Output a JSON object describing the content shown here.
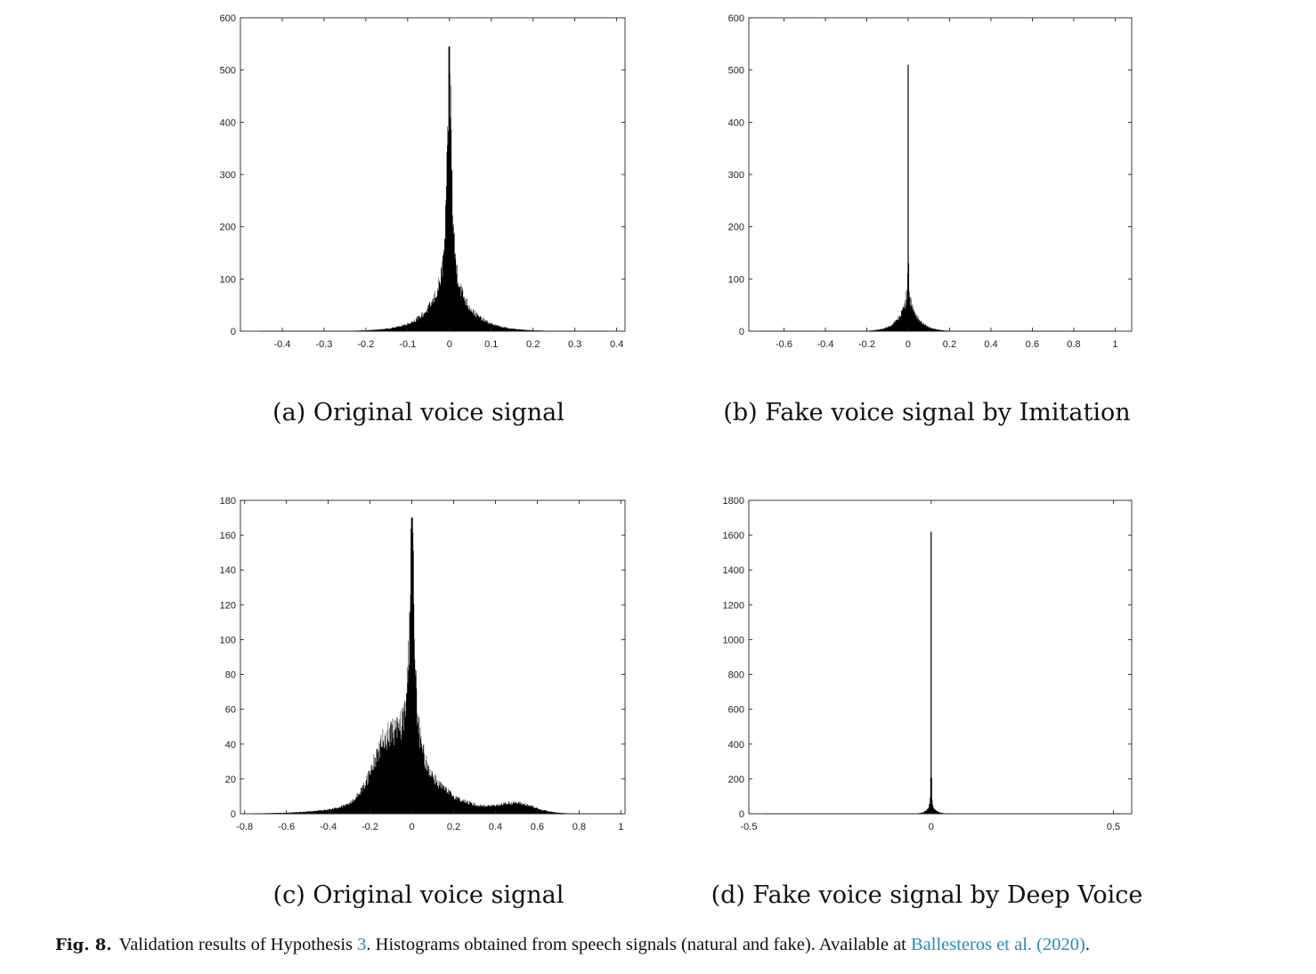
{
  "chart_data": [
    {
      "type": "bar",
      "panel": "a",
      "title": "",
      "xlabel": "",
      "ylabel": "",
      "xlim": [
        -0.5,
        0.42
      ],
      "ylim": [
        0,
        600
      ],
      "x_ticks": [
        -0.4,
        -0.3,
        -0.2,
        -0.1,
        0,
        0.1,
        0.2,
        0.3,
        0.4
      ],
      "x_tick_labels": [
        "-0.4",
        "-0.3",
        "-0.2",
        "-0.1",
        "0",
        "0.1",
        "0.2",
        "0.3",
        "0.4"
      ],
      "y_ticks": [
        0,
        100,
        200,
        300,
        400,
        500,
        600
      ],
      "y_tick_labels": [
        "0",
        "100",
        "200",
        "300",
        "400",
        "500",
        "600"
      ],
      "grid": false,
      "distribution": {
        "center": 0,
        "peak": 545,
        "narrow_width": 0.0055,
        "narrow_weight": 0.78,
        "broad_width": 0.045,
        "broad_weight": 0.22,
        "noise": 0.3,
        "support": [
          -0.45,
          0.38
        ]
      }
    },
    {
      "type": "bar",
      "panel": "b",
      "title": "",
      "xlabel": "",
      "ylabel": "",
      "xlim": [
        -0.77,
        1.08
      ],
      "ylim": [
        0,
        600
      ],
      "x_ticks": [
        -0.6,
        -0.4,
        -0.2,
        0,
        0.2,
        0.4,
        0.6,
        0.8,
        1
      ],
      "x_tick_labels": [
        "-0.6",
        "-0.4",
        "-0.2",
        "0",
        "0.2",
        "0.4",
        "0.6",
        "0.8",
        "1"
      ],
      "y_ticks": [
        0,
        100,
        200,
        300,
        400,
        500,
        600
      ],
      "y_tick_labels": [
        "0",
        "100",
        "200",
        "300",
        "400",
        "500",
        "600"
      ],
      "grid": false,
      "distribution": {
        "center": 0,
        "peak": 510,
        "narrow_width": 0.0012,
        "narrow_weight": 0.86,
        "broad_width": 0.045,
        "broad_weight": 0.14,
        "noise": 0.3,
        "support": [
          -0.72,
          1.0
        ]
      }
    },
    {
      "type": "bar",
      "panel": "c",
      "title": "",
      "xlabel": "",
      "ylabel": "",
      "xlim": [
        -0.82,
        1.02
      ],
      "ylim": [
        0,
        180
      ],
      "x_ticks": [
        -0.8,
        -0.6,
        -0.4,
        -0.2,
        0,
        0.2,
        0.4,
        0.6,
        0.8,
        1
      ],
      "x_tick_labels": [
        "-0.8",
        "-0.6",
        "-0.4",
        "-0.2",
        "0",
        "0.2",
        "0.4",
        "0.6",
        "0.8",
        "1"
      ],
      "y_ticks": [
        0,
        20,
        40,
        60,
        80,
        100,
        120,
        140,
        160,
        180
      ],
      "y_tick_labels": [
        "0",
        "20",
        "40",
        "60",
        "80",
        "100",
        "120",
        "140",
        "160",
        "180"
      ],
      "grid": false,
      "distribution": {
        "center": 0,
        "peak": 170,
        "narrow_width": 0.012,
        "narrow_weight": 0.76,
        "broad_width": 0.14,
        "broad_weight": 0.24,
        "shoulder_x": -0.12,
        "shoulder_height": 26,
        "shoulder_width": 0.1,
        "tail_x": 0.5,
        "tail_height": 5,
        "tail_width": 0.12,
        "noise": 0.3,
        "support": [
          -0.76,
          1.0
        ]
      }
    },
    {
      "type": "bar",
      "panel": "d",
      "title": "",
      "xlabel": "",
      "ylabel": "",
      "xlim": [
        -0.5,
        0.55
      ],
      "ylim": [
        0,
        1800
      ],
      "x_ticks": [
        -0.5,
        0,
        0.5
      ],
      "x_tick_labels": [
        "-0.5",
        "0",
        "0.5"
      ],
      "y_ticks": [
        0,
        200,
        400,
        600,
        800,
        1000,
        1200,
        1400,
        1600,
        1800
      ],
      "y_tick_labels": [
        "0",
        "200",
        "400",
        "600",
        "800",
        "1000",
        "1200",
        "1400",
        "1600",
        "1800"
      ],
      "grid": false,
      "distribution": {
        "center": 0,
        "peak": 1620,
        "narrow_width": 0.0006,
        "narrow_weight": 0.97,
        "broad_width": 0.012,
        "broad_weight": 0.03,
        "noise": 0.3,
        "support": [
          -0.46,
          0.52
        ]
      }
    }
  ],
  "subcaptions": [
    "(a) Original voice signal",
    "(b) Fake voice signal by Imitation",
    "(c) Original voice signal",
    "(d) Fake voice signal by Deep Voice"
  ],
  "caption": {
    "label": "Fig. 8.",
    "text_before": "Validation results of Hypothesis ",
    "hypothesis_ref": "3",
    "text_middle": ". Histograms obtained from speech signals (natural and fake). Available at ",
    "citation": "Ballesteros et al. (2020)",
    "text_after": "."
  }
}
